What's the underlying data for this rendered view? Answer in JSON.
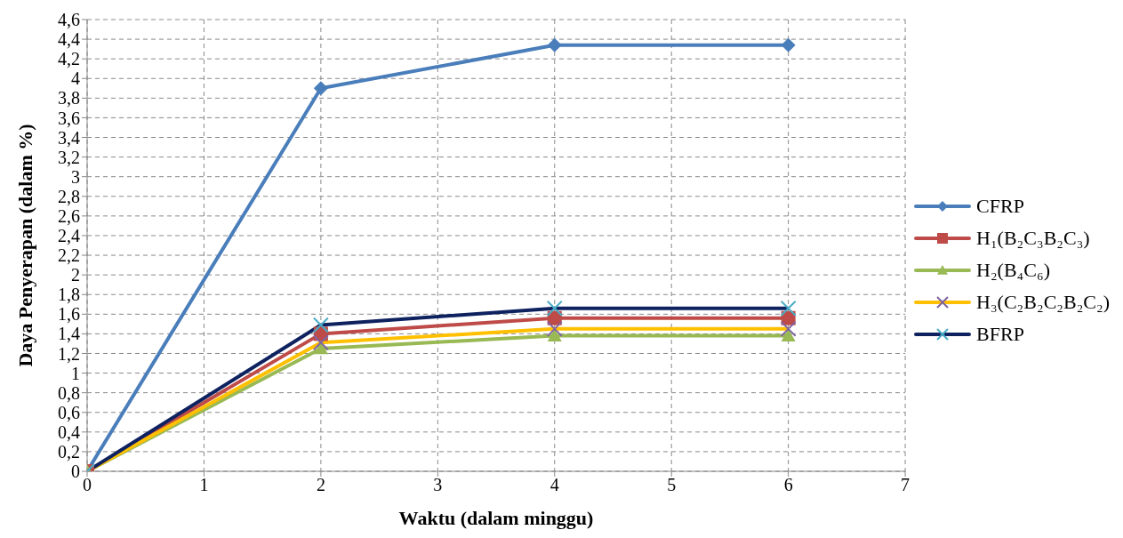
{
  "chart_data": {
    "type": "line",
    "xlabel": "Waktu (dalam minggu)",
    "ylabel": "Daya Penyerapan (dalam %)",
    "x": [
      0,
      2,
      4,
      6
    ],
    "series": [
      {
        "name": "CFRP",
        "color": "#4a7ebb",
        "marker": "diamond",
        "values": [
          0,
          3.9,
          4.34,
          4.34
        ]
      },
      {
        "name": "H₁(B₂C₃B₂C₃)",
        "color": "#be4b48",
        "marker": "square",
        "values": [
          0,
          1.4,
          1.56,
          1.56
        ]
      },
      {
        "name": "H₂(B₄C₆)",
        "color": "#98b954",
        "marker": "triangle",
        "values": [
          0,
          1.25,
          1.38,
          1.38
        ]
      },
      {
        "name": "H₃(C₂B₂C₂B₂C₂)",
        "color": "#ffc000",
        "marker": "cross",
        "values": [
          0,
          1.31,
          1.45,
          1.45
        ]
      },
      {
        "name": "BFRP",
        "color": "#0f2260",
        "marker": "cross",
        "values": [
          0,
          1.49,
          1.66,
          1.66
        ]
      }
    ],
    "xlim": [
      0,
      7
    ],
    "xticks": [
      0,
      1,
      2,
      3,
      4,
      5,
      6,
      7
    ],
    "ylim": [
      0,
      4.6
    ],
    "yticks": [
      0,
      {
        "value": 0.2,
        "label": "0,2"
      },
      {
        "value": 0.4,
        "label": "0,4"
      },
      {
        "value": 0.6,
        "label": "0,6"
      },
      {
        "value": 0.8,
        "label": "0,8"
      },
      1,
      {
        "value": 1.2,
        "label": "1,2"
      },
      {
        "value": 1.4,
        "label": "1,4"
      },
      {
        "value": 1.6,
        "label": "1,6"
      },
      {
        "value": 1.8,
        "label": "1,8"
      },
      2,
      {
        "value": 2.2,
        "label": "2,2"
      },
      {
        "value": 2.4,
        "label": "2,4"
      },
      {
        "value": 2.6,
        "label": "2,6"
      },
      {
        "value": 2.8,
        "label": "2,8"
      },
      3,
      {
        "value": 3.2,
        "label": "3,2"
      },
      {
        "value": 3.4,
        "label": "3,4"
      },
      {
        "value": 3.6,
        "label": "3,6"
      },
      {
        "value": 3.8,
        "label": "3,8"
      },
      4,
      {
        "value": 4.2,
        "label": "4,2"
      },
      {
        "value": 4.4,
        "label": "4,4"
      },
      {
        "value": 4.6,
        "label": "4,6"
      }
    ],
    "grid": true,
    "legend": "right",
    "line_style": "solid"
  }
}
